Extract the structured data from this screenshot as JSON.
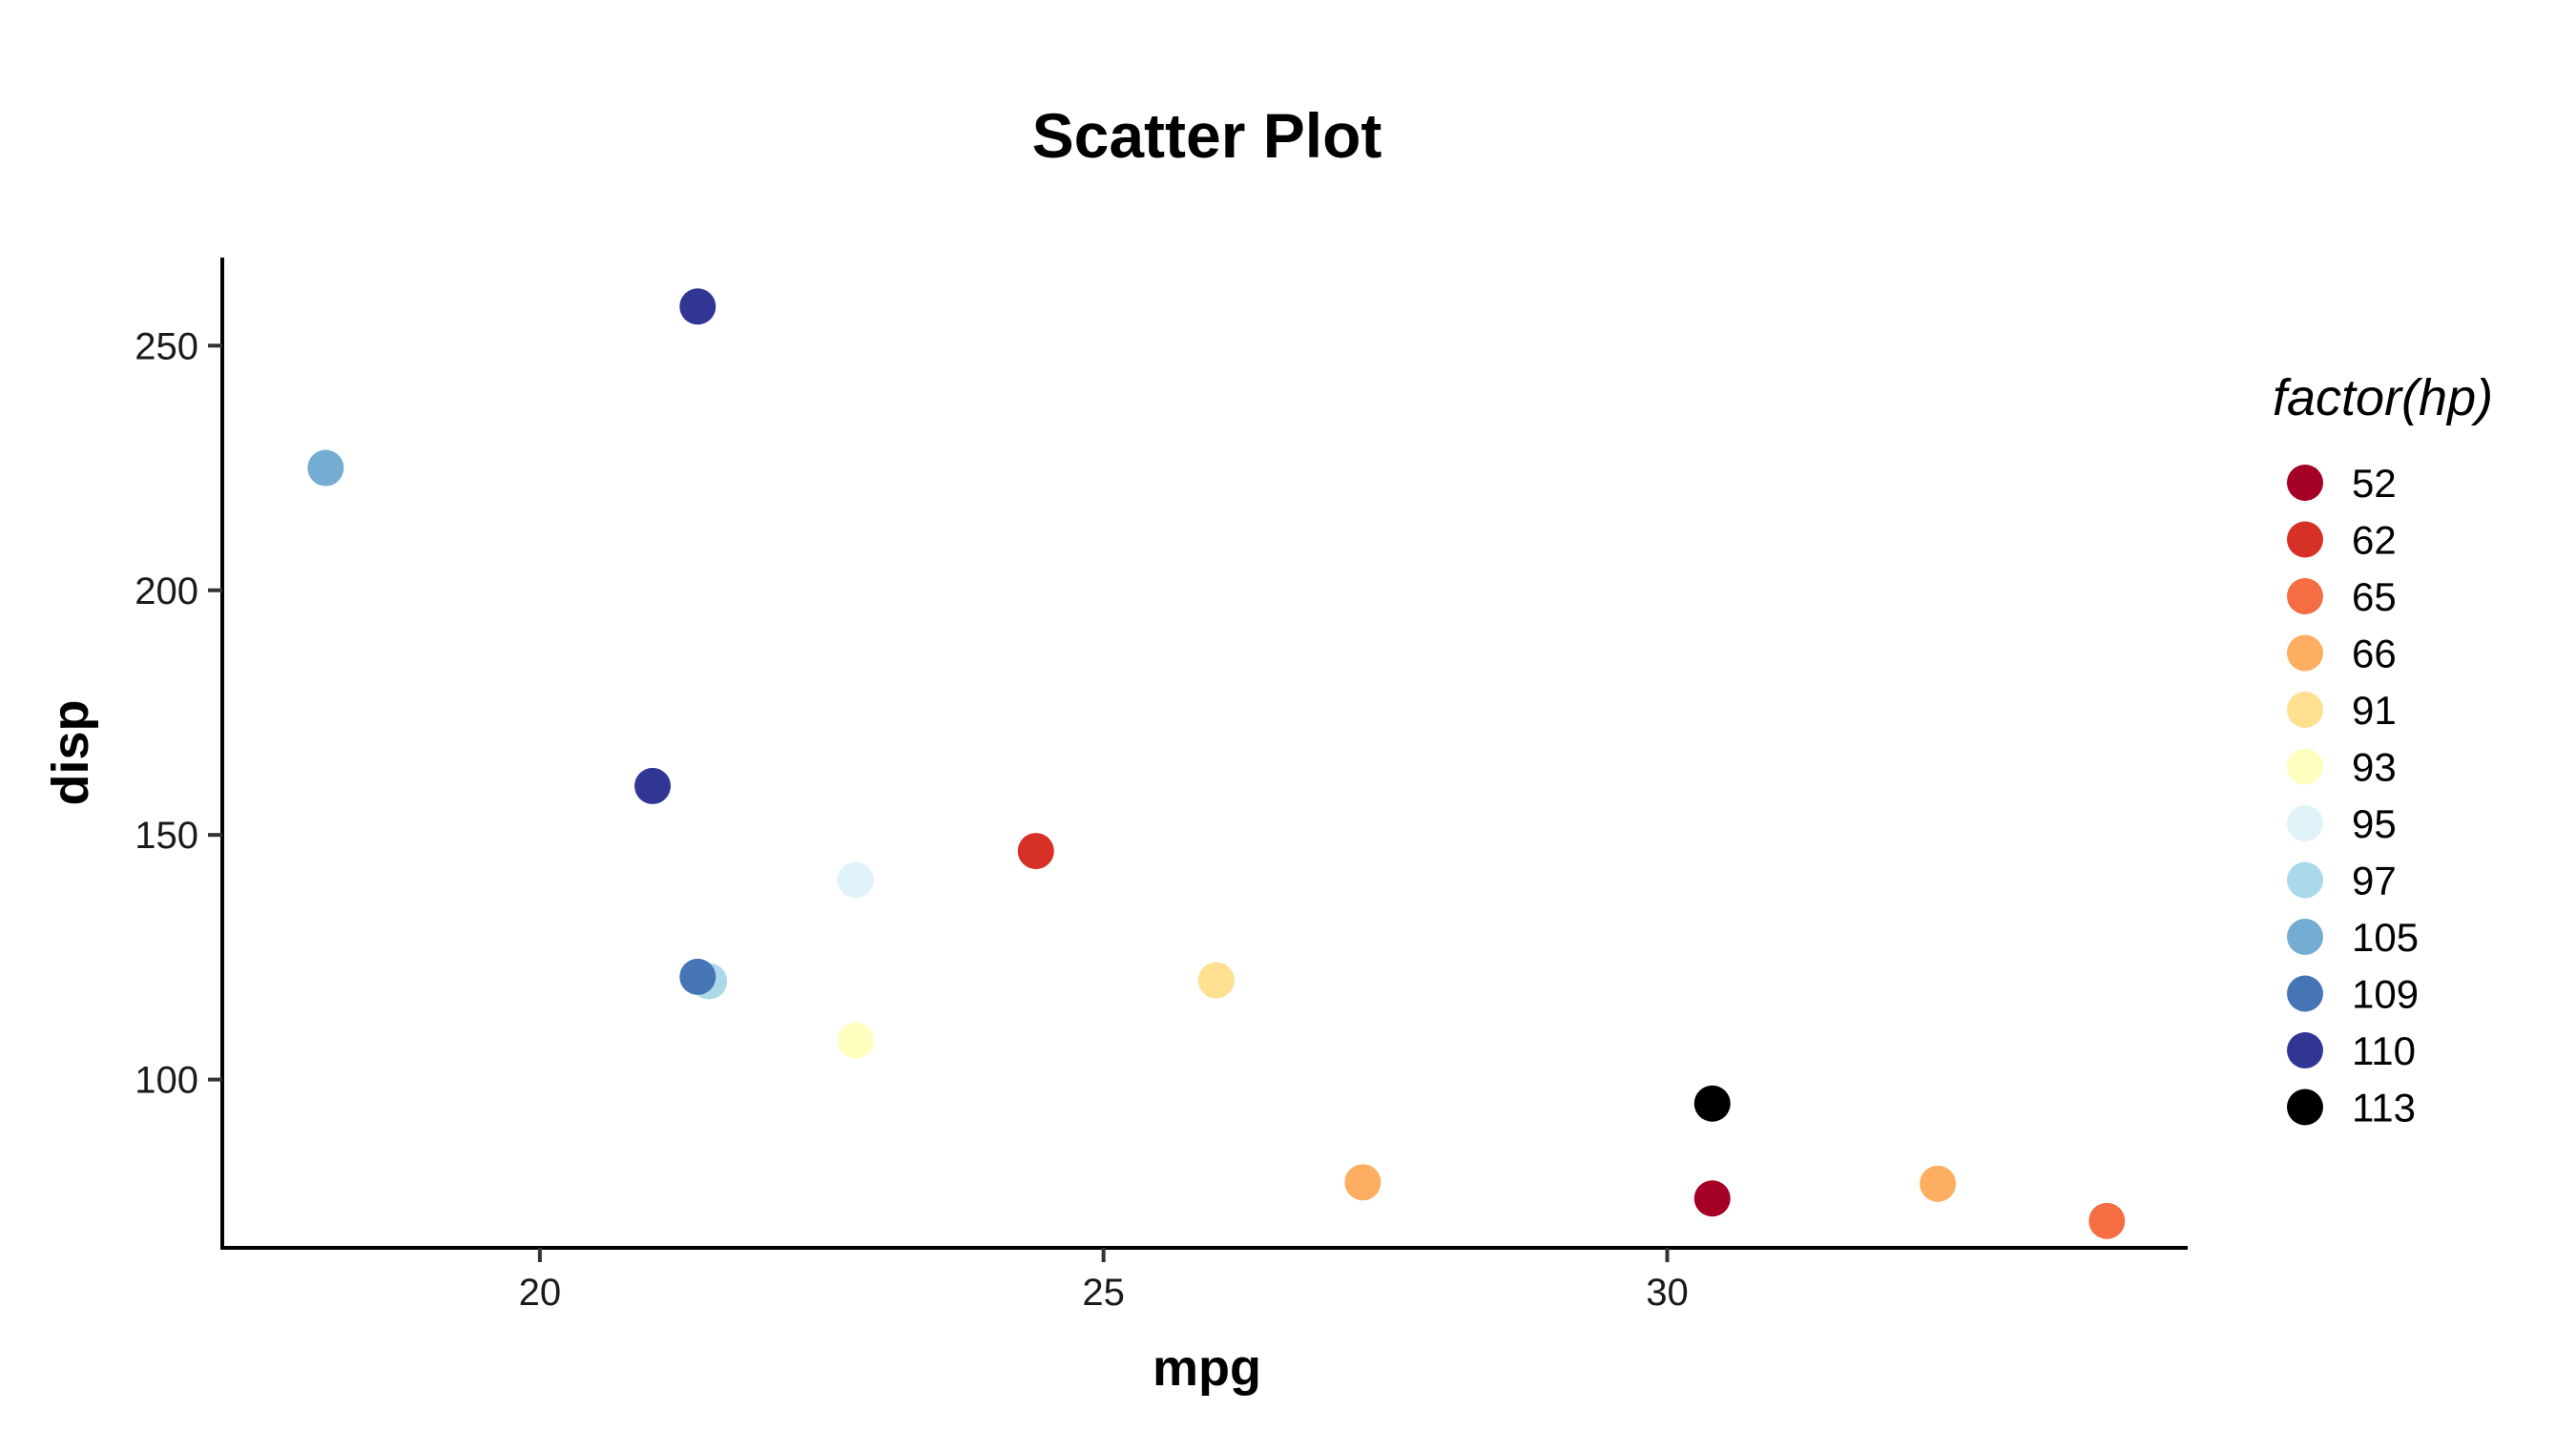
{
  "chart_data": {
    "type": "scatter",
    "title": "Scatter Plot",
    "xlabel": "mpg",
    "ylabel": "disp",
    "xlim": [
      17.2,
      34.6
    ],
    "ylim": [
      66.0,
      268.0
    ],
    "x_ticks": [
      20,
      25,
      30
    ],
    "y_ticks": [
      100,
      150,
      200,
      250
    ],
    "grid": false,
    "legend": {
      "title": "factor(hp)",
      "placement": "right",
      "entries": [
        {
          "label": "52",
          "color": "#A50026"
        },
        {
          "label": "62",
          "color": "#D73027"
        },
        {
          "label": "65",
          "color": "#F46D43"
        },
        {
          "label": "66",
          "color": "#FDAE61"
        },
        {
          "label": "91",
          "color": "#FEE090"
        },
        {
          "label": "93",
          "color": "#FFFFBF"
        },
        {
          "label": "95",
          "color": "#E0F3F8"
        },
        {
          "label": "97",
          "color": "#ABD9E9"
        },
        {
          "label": "105",
          "color": "#74ADD1"
        },
        {
          "label": "109",
          "color": "#4575B4"
        },
        {
          "label": "110",
          "color": "#313695"
        },
        {
          "label": "113",
          "color": "#000000"
        }
      ]
    },
    "points": [
      {
        "x": 18.1,
        "y": 225.0,
        "hp": "105"
      },
      {
        "x": 21.4,
        "y": 258.0,
        "hp": "110"
      },
      {
        "x": 21.0,
        "y": 160.0,
        "hp": "110"
      },
      {
        "x": 21.5,
        "y": 120.1,
        "hp": "97"
      },
      {
        "x": 21.4,
        "y": 121.0,
        "hp": "109"
      },
      {
        "x": 22.8,
        "y": 140.8,
        "hp": "95"
      },
      {
        "x": 22.8,
        "y": 108.0,
        "hp": "93"
      },
      {
        "x": 24.4,
        "y": 146.7,
        "hp": "62"
      },
      {
        "x": 26.0,
        "y": 120.3,
        "hp": "91"
      },
      {
        "x": 27.3,
        "y": 79.0,
        "hp": "66"
      },
      {
        "x": 30.4,
        "y": 95.1,
        "hp": "113"
      },
      {
        "x": 30.4,
        "y": 75.7,
        "hp": "52"
      },
      {
        "x": 32.4,
        "y": 78.7,
        "hp": "66"
      },
      {
        "x": 33.9,
        "y": 71.1,
        "hp": "65"
      }
    ]
  }
}
